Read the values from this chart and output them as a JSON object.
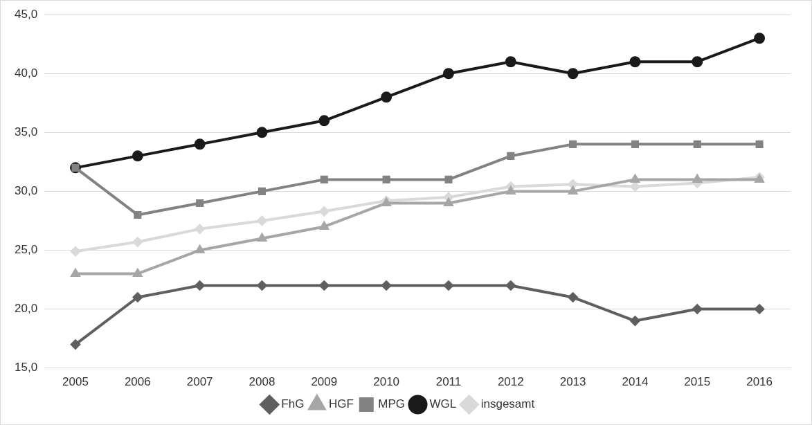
{
  "chart_data": {
    "type": "line",
    "categories": [
      "2005",
      "2006",
      "2007",
      "2008",
      "2009",
      "2010",
      "2011",
      "2012",
      "2013",
      "2014",
      "2015",
      "2016"
    ],
    "series": [
      {
        "name": "FhG",
        "color": "#5f5f5f",
        "marker": "diamond",
        "values": [
          17,
          21,
          22,
          22,
          22,
          22,
          22,
          22,
          21,
          19,
          20,
          20
        ]
      },
      {
        "name": "HGF",
        "color": "#a6a6a6",
        "marker": "triangle",
        "values": [
          23,
          23,
          25,
          26,
          27,
          29,
          29,
          30,
          30,
          31,
          31,
          31
        ]
      },
      {
        "name": "MPG",
        "color": "#828282",
        "marker": "square",
        "values": [
          32,
          28,
          29,
          30,
          31,
          31,
          31,
          33,
          34,
          34,
          34,
          34
        ]
      },
      {
        "name": "WGL",
        "color": "#1a1a1a",
        "marker": "circle",
        "values": [
          32,
          33,
          34,
          35,
          36,
          38,
          40,
          41,
          40,
          41,
          41,
          43
        ]
      },
      {
        "name": "insgesamt",
        "color": "#d9d9d9",
        "marker": "diamond",
        "values": [
          24.9,
          25.7,
          26.8,
          27.5,
          28.3,
          29.2,
          29.5,
          30.4,
          30.6,
          30.4,
          30.7,
          31.2
        ]
      }
    ],
    "ylim": [
      15,
      45
    ],
    "yticks": [
      {
        "value": 15,
        "label": "15,0"
      },
      {
        "value": 20,
        "label": "20,0"
      },
      {
        "value": 25,
        "label": "25,0"
      },
      {
        "value": 30,
        "label": "30,0"
      },
      {
        "value": 35,
        "label": "35,0"
      },
      {
        "value": 40,
        "label": "40,0"
      },
      {
        "value": 45,
        "label": "45,0"
      }
    ],
    "grid": "y",
    "legend": "bottom",
    "line_style": "solid"
  }
}
